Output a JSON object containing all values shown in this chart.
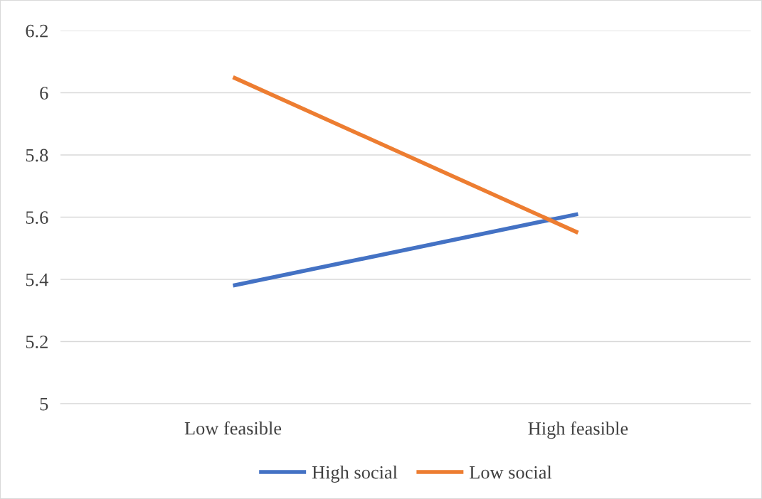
{
  "chart_data": {
    "type": "line",
    "categories": [
      "Low feasible",
      "High feasible"
    ],
    "series": [
      {
        "name": "High social",
        "color": "#4472c4",
        "values": [
          5.38,
          5.61
        ]
      },
      {
        "name": "Low social",
        "color": "#ed7d31",
        "values": [
          6.05,
          5.55
        ]
      }
    ],
    "ylim": [
      5,
      6.2
    ],
    "yticks": [
      5,
      5.2,
      5.4,
      5.6,
      5.8,
      6,
      6.2
    ],
    "grid": "y",
    "legend": "bottom",
    "marker": "none",
    "line_style": "solid"
  }
}
